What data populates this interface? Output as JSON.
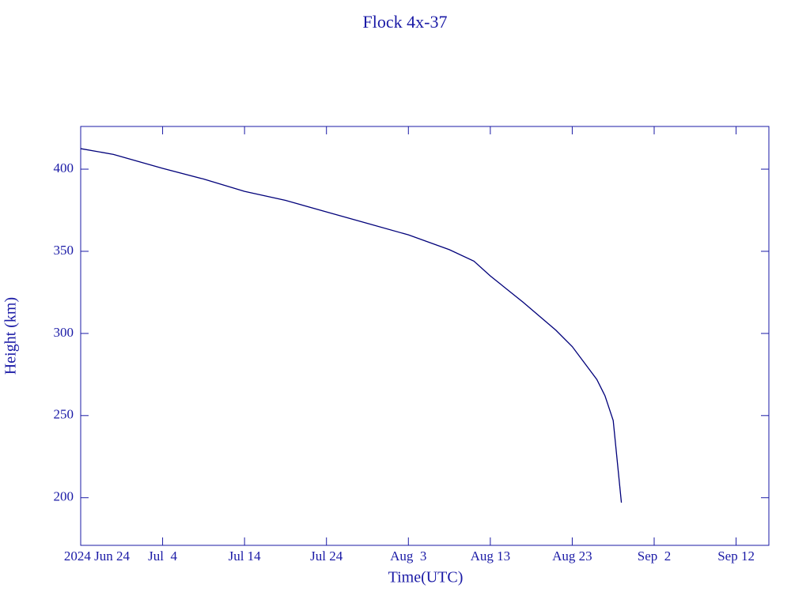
{
  "chart_data": {
    "type": "line",
    "title": "Flock 4x-37",
    "x_label": "Time(UTC)",
    "y_label": "Height (km)",
    "x": [
      "2024-06-24",
      "2024-06-28",
      "2024-07-04",
      "2024-07-09",
      "2024-07-14",
      "2024-07-19",
      "2024-07-24",
      "2024-07-29",
      "2024-08-03",
      "2024-08-08",
      "2024-08-11",
      "2024-08-13",
      "2024-08-17",
      "2024-08-21",
      "2024-08-23",
      "2024-08-26",
      "2024-08-27",
      "2024-08-28",
      "2024-08-29"
    ],
    "values": [
      412.5,
      409,
      400.5,
      394,
      386.5,
      381,
      374,
      367,
      360,
      351,
      344,
      335,
      319,
      302,
      292,
      272,
      262,
      247,
      197
    ],
    "color": "#00007a",
    "xlim": [
      "2024-06-24",
      "2024-09-16"
    ],
    "xticks": [
      {
        "value": "2024-06-24",
        "label": "2024 Jun 24"
      },
      {
        "value": "2024-07-04",
        "label": "Jul  4"
      },
      {
        "value": "2024-07-14",
        "label": "Jul 14"
      },
      {
        "value": "2024-07-24",
        "label": "Jul 24"
      },
      {
        "value": "2024-08-03",
        "label": "Aug  3"
      },
      {
        "value": "2024-08-13",
        "label": "Aug 13"
      },
      {
        "value": "2024-08-23",
        "label": "Aug 23"
      },
      {
        "value": "2024-09-02",
        "label": "Sep  2"
      },
      {
        "value": "2024-09-12",
        "label": "Sep 12"
      }
    ],
    "ylim": [
      171,
      426
    ],
    "yticks": [
      200,
      250,
      300,
      350,
      400
    ]
  }
}
